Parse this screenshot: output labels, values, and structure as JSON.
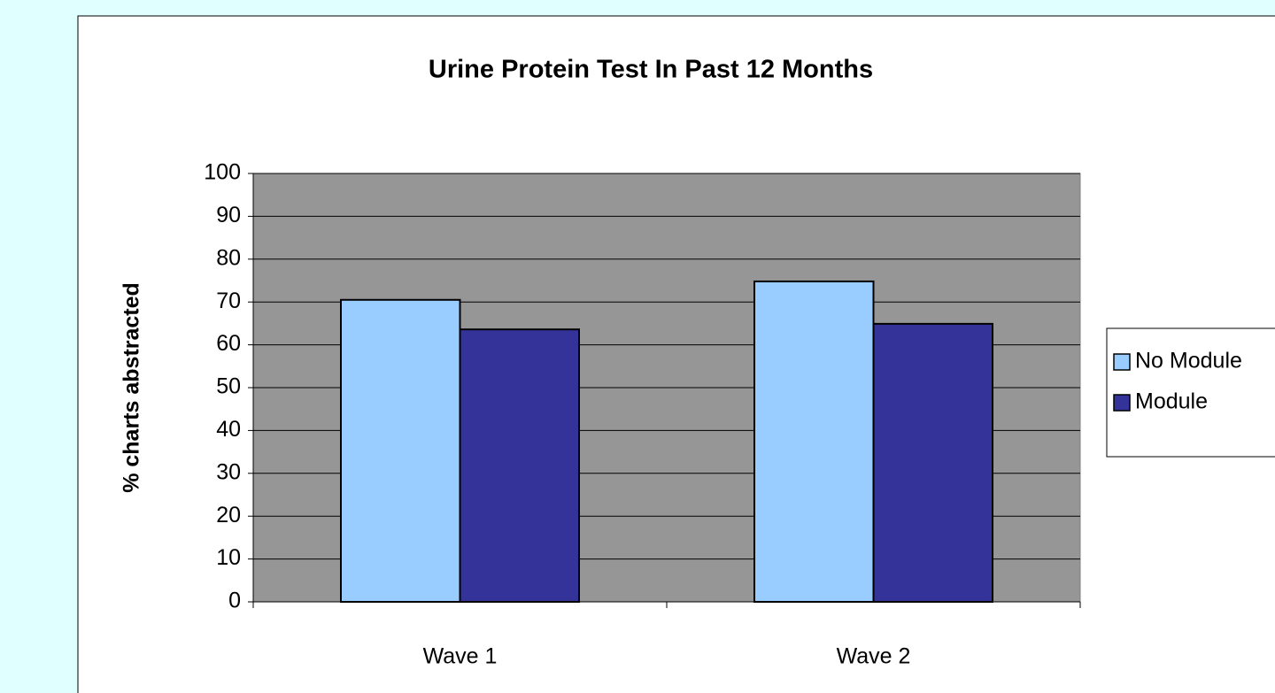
{
  "chart_data": {
    "type": "bar",
    "title": "Urine Protein Test In Past 12 Months",
    "y_label": "% charts abstracted",
    "categories": [
      "Wave 1",
      "Wave 2"
    ],
    "series": [
      {
        "name": "No Module",
        "color": "#99ccff",
        "values": [
          70.5,
          74.8
        ]
      },
      {
        "name": "Module",
        "color": "#333399",
        "values": [
          63.6,
          64.9
        ]
      }
    ],
    "ylim": [
      0,
      100
    ],
    "yticks": [
      0,
      10,
      20,
      30,
      40,
      50,
      60,
      70,
      80,
      90,
      100
    ],
    "grid": true,
    "legend": "right",
    "plot_background": "#969696"
  }
}
